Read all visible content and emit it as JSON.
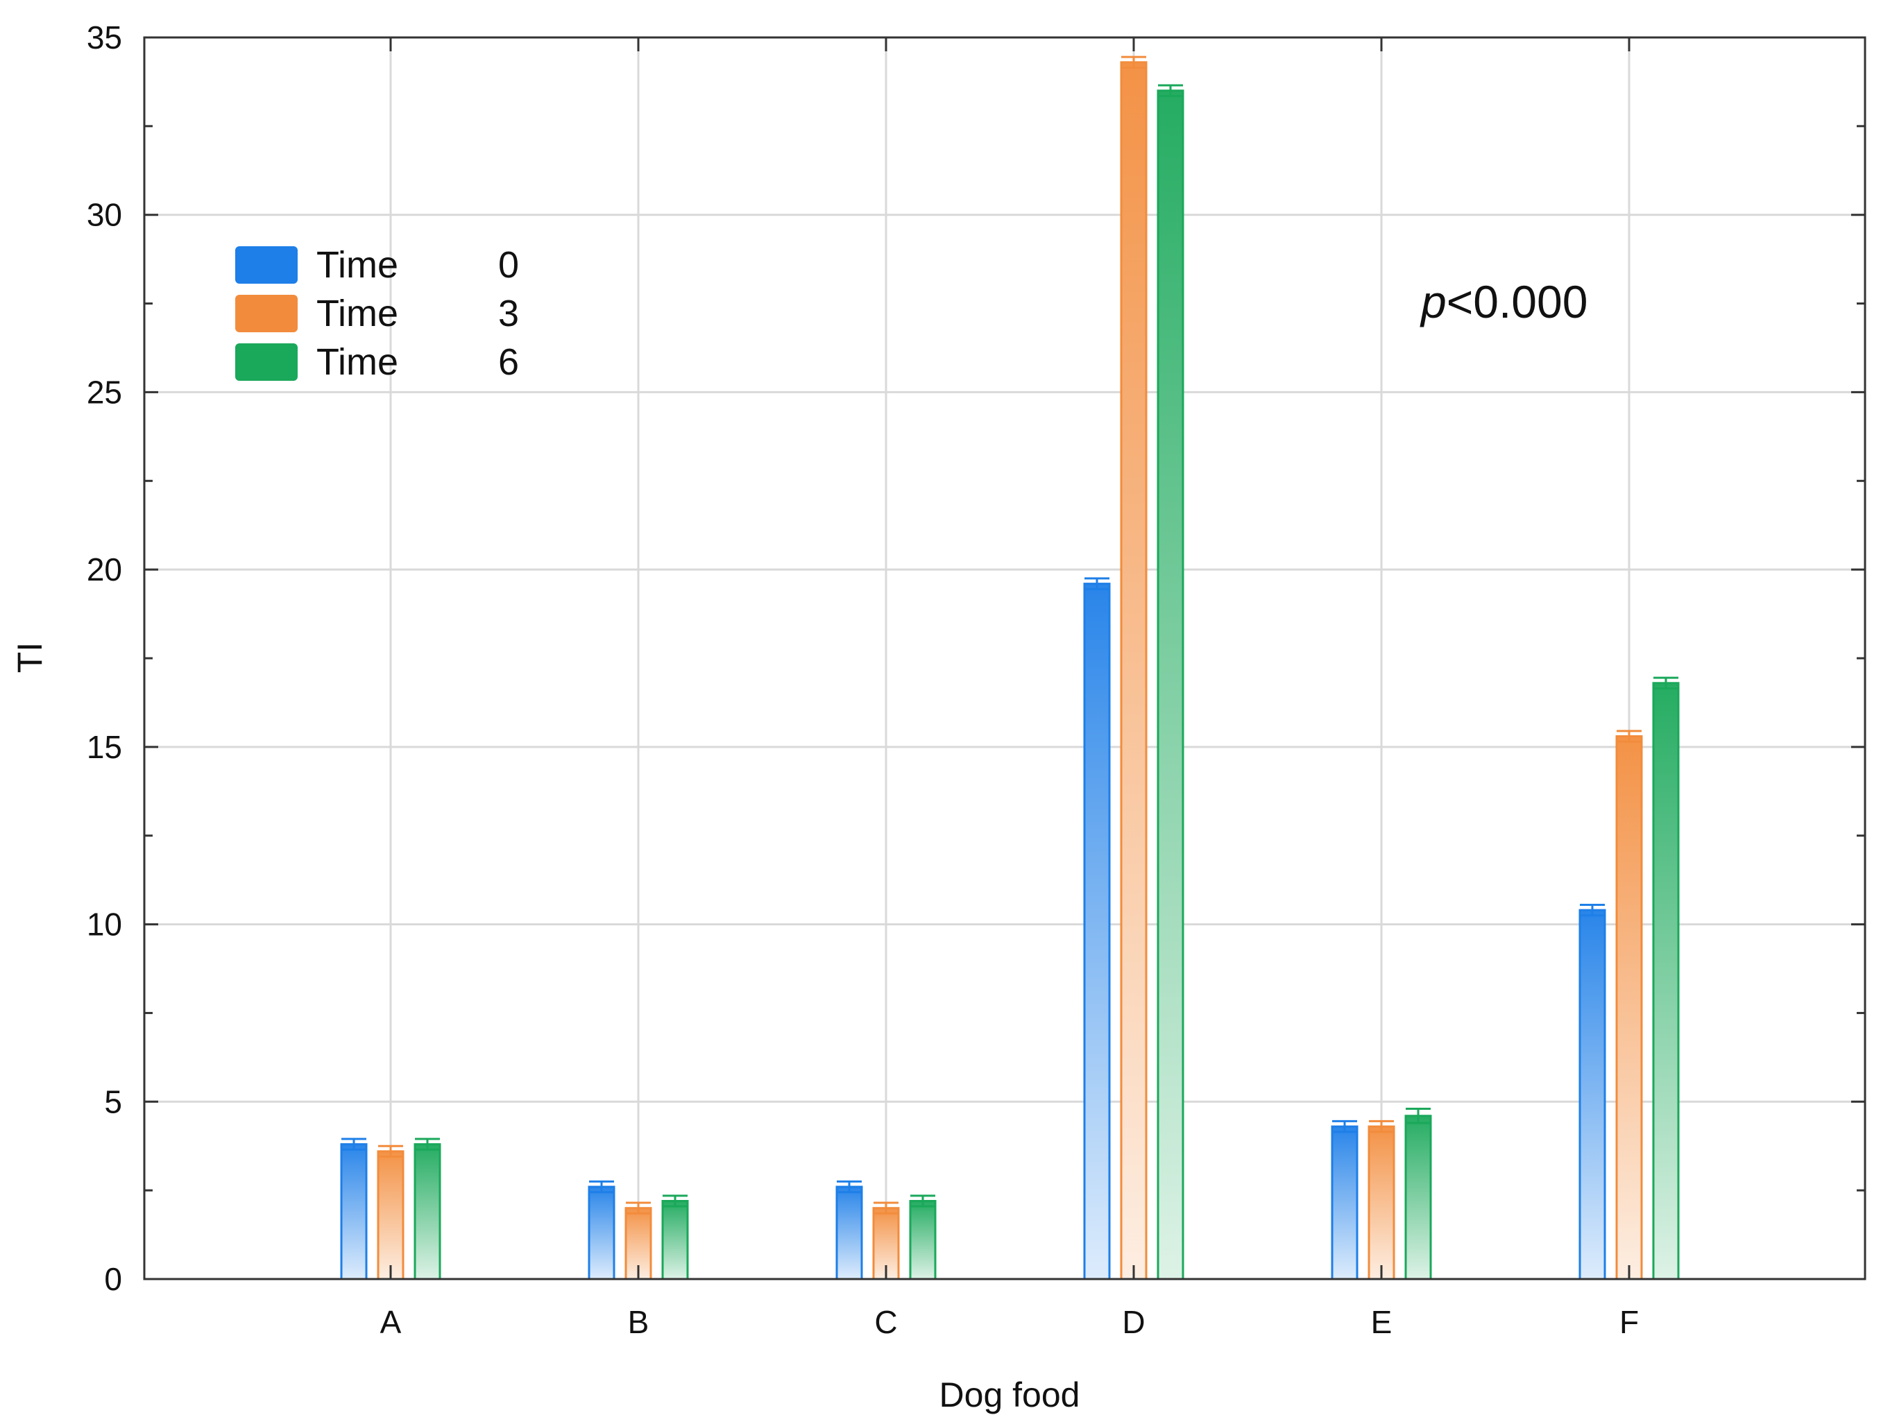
{
  "chart_data": {
    "type": "bar",
    "title": "",
    "xlabel": "Dog food",
    "ylabel": "TI",
    "ylim": [
      0,
      35
    ],
    "yticks": [
      "0",
      "5",
      "10",
      "15",
      "20",
      "25",
      "30",
      "35"
    ],
    "categories": [
      "A",
      "B",
      "C",
      "D",
      "E",
      "F"
    ],
    "series": [
      {
        "name": "Time",
        "level": "0",
        "color": "#1e7fe8",
        "values": [
          3.8,
          2.6,
          2.6,
          19.6,
          4.3,
          10.4
        ],
        "errors": [
          0.15,
          0.15,
          0.15,
          0.15,
          0.15,
          0.15
        ]
      },
      {
        "name": "Time",
        "level": "3",
        "color": "#f28c3c",
        "values": [
          3.6,
          2.0,
          2.0,
          34.3,
          4.3,
          15.3
        ],
        "errors": [
          0.15,
          0.15,
          0.15,
          0.15,
          0.15,
          0.15
        ]
      },
      {
        "name": "Time",
        "level": "6",
        "color": "#1aa85a",
        "values": [
          3.8,
          2.2,
          2.2,
          33.5,
          4.6,
          16.8
        ],
        "errors": [
          0.15,
          0.15,
          0.15,
          0.15,
          0.2,
          0.15
        ]
      }
    ],
    "grid": true,
    "legend_position": "top-left",
    "annotation": {
      "italic": "p",
      "text": "<0.000",
      "position": "top-right"
    }
  }
}
